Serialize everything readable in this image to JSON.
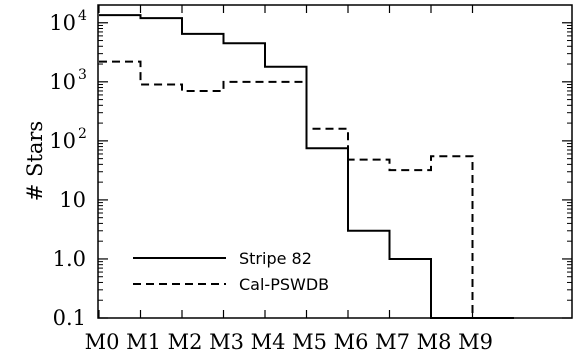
{
  "chart_data": {
    "type": "line",
    "step": "histogram",
    "title": "",
    "xlabel": "",
    "ylabel": "# Stars",
    "yscale": "log",
    "ylim": [
      0.1,
      20000
    ],
    "grid": false,
    "legend_position": "bottom-left",
    "categories": [
      "M0",
      "M1",
      "M2",
      "M3",
      "M4",
      "M5",
      "M6",
      "M7",
      "M8",
      "M9"
    ],
    "y_ticks": [
      {
        "value": 10000,
        "base": "10",
        "exp": "4"
      },
      {
        "value": 1000,
        "base": "10",
        "exp": "3"
      },
      {
        "value": 100,
        "base": "10",
        "exp": "2"
      },
      {
        "value": 10,
        "base": "10",
        "exp": ""
      },
      {
        "value": 1,
        "base": "1.0",
        "exp": ""
      },
      {
        "value": 0.1,
        "base": "0.1",
        "exp": ""
      }
    ],
    "series": [
      {
        "name": "Stripe 82",
        "style": "solid",
        "color": "#000000",
        "values": [
          13500,
          12000,
          6500,
          4500,
          1800,
          75,
          3,
          1,
          0.09,
          0.09
        ]
      },
      {
        "name": "Cal-PSWDB",
        "style": "dashed",
        "color": "#000000",
        "values": [
          2200,
          900,
          700,
          1000,
          1000,
          160,
          48,
          32,
          55,
          0.09
        ]
      }
    ]
  }
}
